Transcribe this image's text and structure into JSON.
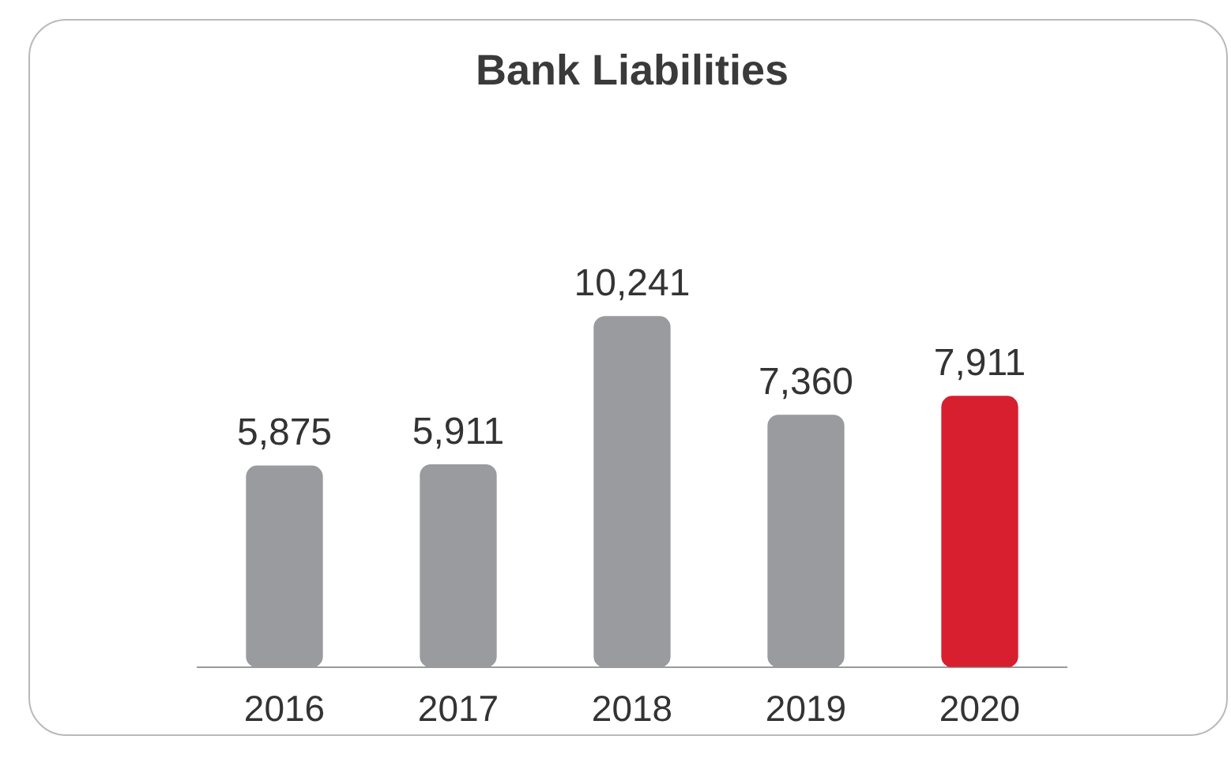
{
  "chart_data": {
    "type": "bar",
    "title": "Bank Liabilities",
    "categories": [
      "2016",
      "2017",
      "2018",
      "2019",
      "2020"
    ],
    "values": [
      5875,
      5911,
      10241,
      7360,
      7911
    ],
    "colors": [
      "#9a9b9e",
      "#9a9b9e",
      "#9a9b9e",
      "#9a9b9e",
      "#d71f30"
    ],
    "value_labels": [
      "5,875",
      "5,911",
      "10,241",
      "7,360",
      "7,911"
    ],
    "grid": false,
    "legend": false
  }
}
